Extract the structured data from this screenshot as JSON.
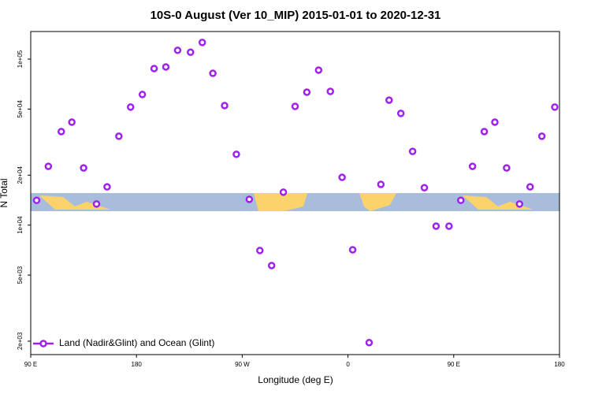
{
  "chart_data": {
    "type": "scatter",
    "title": "10S-0 August (Ver 10_MIP)   2015-01-01 to 2020-12-31",
    "x_label": "Longitude (deg E)",
    "y_label": "N Total",
    "ylog": true,
    "legend": "bottom-left",
    "x": [
      95,
      105,
      116,
      125,
      135,
      146,
      155,
      165,
      175,
      185,
      195,
      205,
      215,
      226,
      236,
      245,
      255,
      265,
      276,
      285,
      295,
      305,
      315,
      325,
      335,
      345,
      355,
      364,
      378,
      388,
      395,
      405,
      415,
      425,
      435,
      446,
      456,
      466,
      476,
      485,
      495,
      506,
      515,
      525,
      536
    ],
    "series": [
      {
        "name": "Land (Nadir&Glint) and Ocean (Glint)",
        "color": "#a020f0",
        "values": [
          14100,
          22600,
          36600,
          41700,
          22100,
          13400,
          17000,
          34300,
          51400,
          61200,
          87700,
          89700,
          113000,
          110000,
          126000,
          82100,
          52500,
          26700,
          14300,
          7030,
          5710,
          15800,
          51900,
          63200,
          85800,
          63900,
          19400,
          7100,
          1960,
          17600,
          56600,
          47100,
          27800,
          16800,
          9860,
          9860,
          14100,
          22600,
          36600,
          41700,
          22100,
          13400,
          17000,
          34300,
          51400
        ]
      }
    ],
    "xlim": [
      90,
      540
    ],
    "xticks": [
      {
        "value": 90,
        "label": "90 E"
      },
      180,
      {
        "value": 270,
        "label": "90 W"
      },
      {
        "value": 360,
        "label": "0"
      },
      {
        "value": 450,
        "label": "90 E"
      },
      {
        "value": 540,
        "label": "180"
      }
    ],
    "ylim": [
      1660,
      146600
    ],
    "yticks": [
      {
        "value": 2000,
        "label": "2e+03"
      },
      {
        "value": 5000,
        "label": "5e+03"
      },
      {
        "value": 10000,
        "label": "1e+04"
      },
      {
        "value": 20000,
        "label": "2e+04"
      },
      {
        "value": 50000,
        "label": "5e+04"
      },
      {
        "value": 100000,
        "label": "1e+05"
      }
    ]
  }
}
